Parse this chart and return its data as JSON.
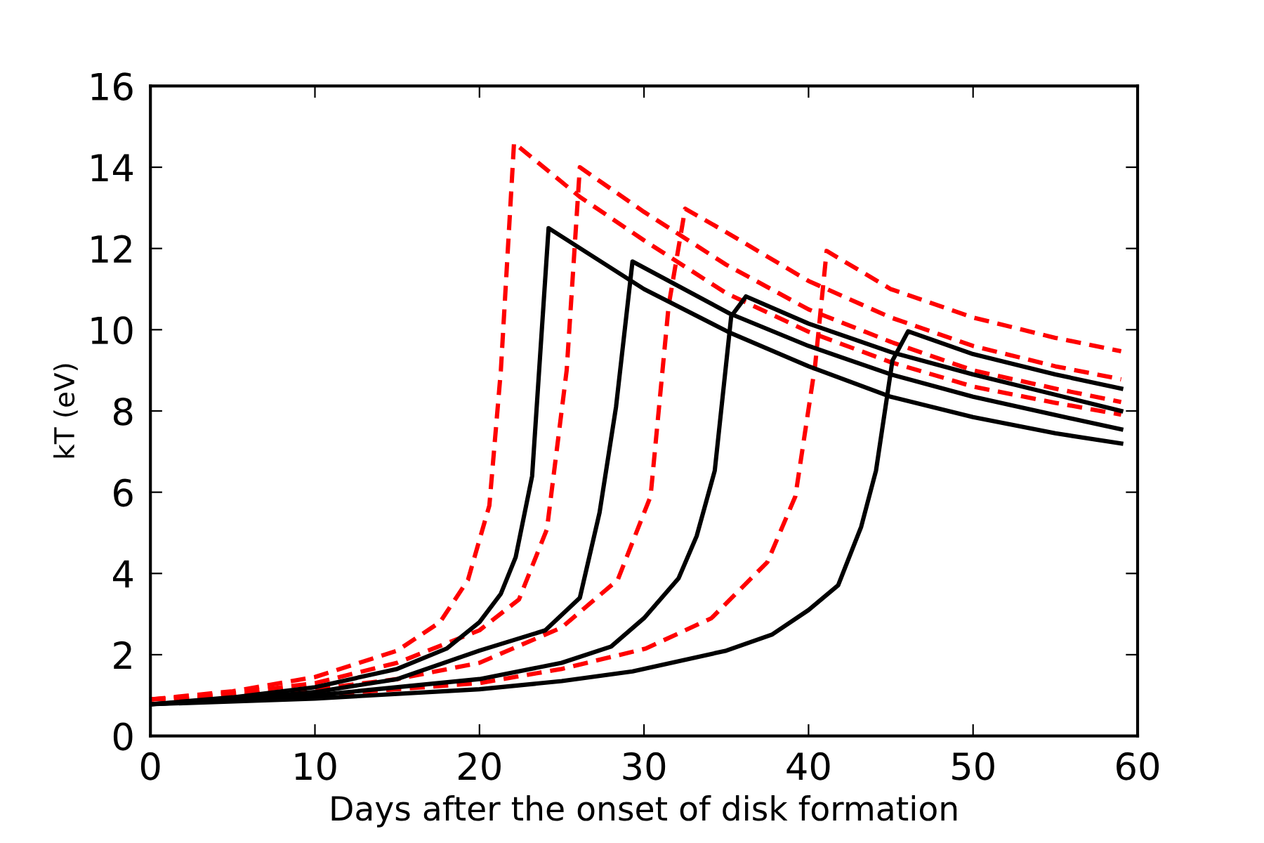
{
  "chart_data": {
    "type": "line",
    "xlabel": "Days after the onset of disk formation",
    "ylabel": "kT (eV)",
    "xlim": [
      0,
      60
    ],
    "ylim": [
      0,
      16
    ],
    "xticks": [
      0,
      10,
      20,
      30,
      40,
      50,
      60
    ],
    "yticks": [
      0,
      2,
      4,
      6,
      8,
      10,
      12,
      14,
      16
    ],
    "grid": false,
    "legend": false,
    "series": [
      {
        "color": "#ff0000",
        "line_style": "dashed",
        "x": [
          0,
          5,
          10,
          15,
          17.6,
          19.3,
          20.6,
          21.3,
          22.1,
          26.1,
          30,
          35,
          40,
          45,
          50,
          55,
          59
        ],
        "values": [
          0.9,
          1.1,
          1.45,
          2.1,
          2.8,
          3.84,
          5.67,
          9,
          14.6,
          13.27,
          12.2,
          10.9,
          9.95,
          9.2,
          8.6,
          8.2,
          7.91
        ]
      },
      {
        "color": "#ff0000",
        "line_style": "dashed",
        "x": [
          0,
          5,
          10,
          15,
          20,
          22.4,
          24.1,
          25.3,
          26.1,
          30,
          35,
          40,
          45,
          50,
          55,
          59
        ],
        "values": [
          0.9,
          1.05,
          1.3,
          1.8,
          2.6,
          3.36,
          5.09,
          9,
          14.0,
          12.9,
          11.6,
          10.5,
          9.7,
          9.0,
          8.55,
          8.22
        ]
      },
      {
        "color": "#ff0000",
        "line_style": "dashed",
        "x": [
          0,
          5,
          10,
          15,
          20,
          25,
          28.4,
          30.4,
          31.5,
          32.5,
          35,
          40,
          45,
          50,
          55,
          59
        ],
        "values": [
          0.9,
          1.0,
          1.15,
          1.4,
          1.8,
          2.67,
          3.84,
          5.9,
          10.6,
          12.98,
          12.4,
          11.2,
          10.3,
          9.6,
          9.1,
          8.78
        ]
      },
      {
        "color": "#ff0000",
        "line_style": "dashed",
        "x": [
          0,
          10,
          20,
          25,
          30.1,
          34.1,
          37.5,
          39.2,
          40.4,
          41.1,
          45,
          50,
          55,
          59
        ],
        "values": [
          0.9,
          1.0,
          1.3,
          1.65,
          2.15,
          2.9,
          4.28,
          5.9,
          9.12,
          11.94,
          11.0,
          10.3,
          9.8,
          9.47
        ]
      },
      {
        "color": "#000000",
        "line_style": "solid",
        "x": [
          0,
          5,
          10,
          15,
          18,
          20,
          21.3,
          22.2,
          23.2,
          24.2,
          30,
          35.2,
          40,
          45,
          50,
          55,
          59
        ],
        "values": [
          0.78,
          0.95,
          1.2,
          1.65,
          2.15,
          2.8,
          3.5,
          4.4,
          6.4,
          12.5,
          11.0,
          9.93,
          9.1,
          8.35,
          7.85,
          7.45,
          7.2
        ]
      },
      {
        "color": "#000000",
        "line_style": "solid",
        "x": [
          0,
          5,
          10,
          15,
          20,
          24,
          26.1,
          27.3,
          28.3,
          29.3,
          35.2,
          40,
          45,
          50,
          55,
          59
        ],
        "values": [
          0.78,
          0.9,
          1.08,
          1.4,
          2.1,
          2.6,
          3.4,
          5.5,
          8.1,
          11.68,
          10.4,
          9.6,
          8.9,
          8.35,
          7.9,
          7.55
        ]
      },
      {
        "color": "#000000",
        "line_style": "solid",
        "x": [
          0,
          10,
          20,
          25,
          28,
          30,
          32.1,
          33.2,
          34.3,
          35.3,
          36.2,
          40,
          45,
          50,
          55,
          59
        ],
        "values": [
          0.78,
          1.0,
          1.4,
          1.8,
          2.2,
          2.9,
          3.88,
          4.92,
          6.53,
          10.33,
          10.82,
          10.15,
          9.45,
          8.9,
          8.4,
          8.0
        ]
      },
      {
        "color": "#000000",
        "line_style": "solid",
        "x": [
          0,
          10,
          20,
          25,
          29.3,
          35,
          37.8,
          40,
          41.8,
          43.2,
          44.1,
          45.1,
          46.05,
          50,
          55,
          59
        ],
        "values": [
          0.78,
          0.92,
          1.15,
          1.35,
          1.59,
          2.1,
          2.5,
          3.1,
          3.71,
          5.15,
          6.53,
          9.24,
          9.96,
          9.4,
          8.9,
          8.55
        ]
      }
    ]
  }
}
